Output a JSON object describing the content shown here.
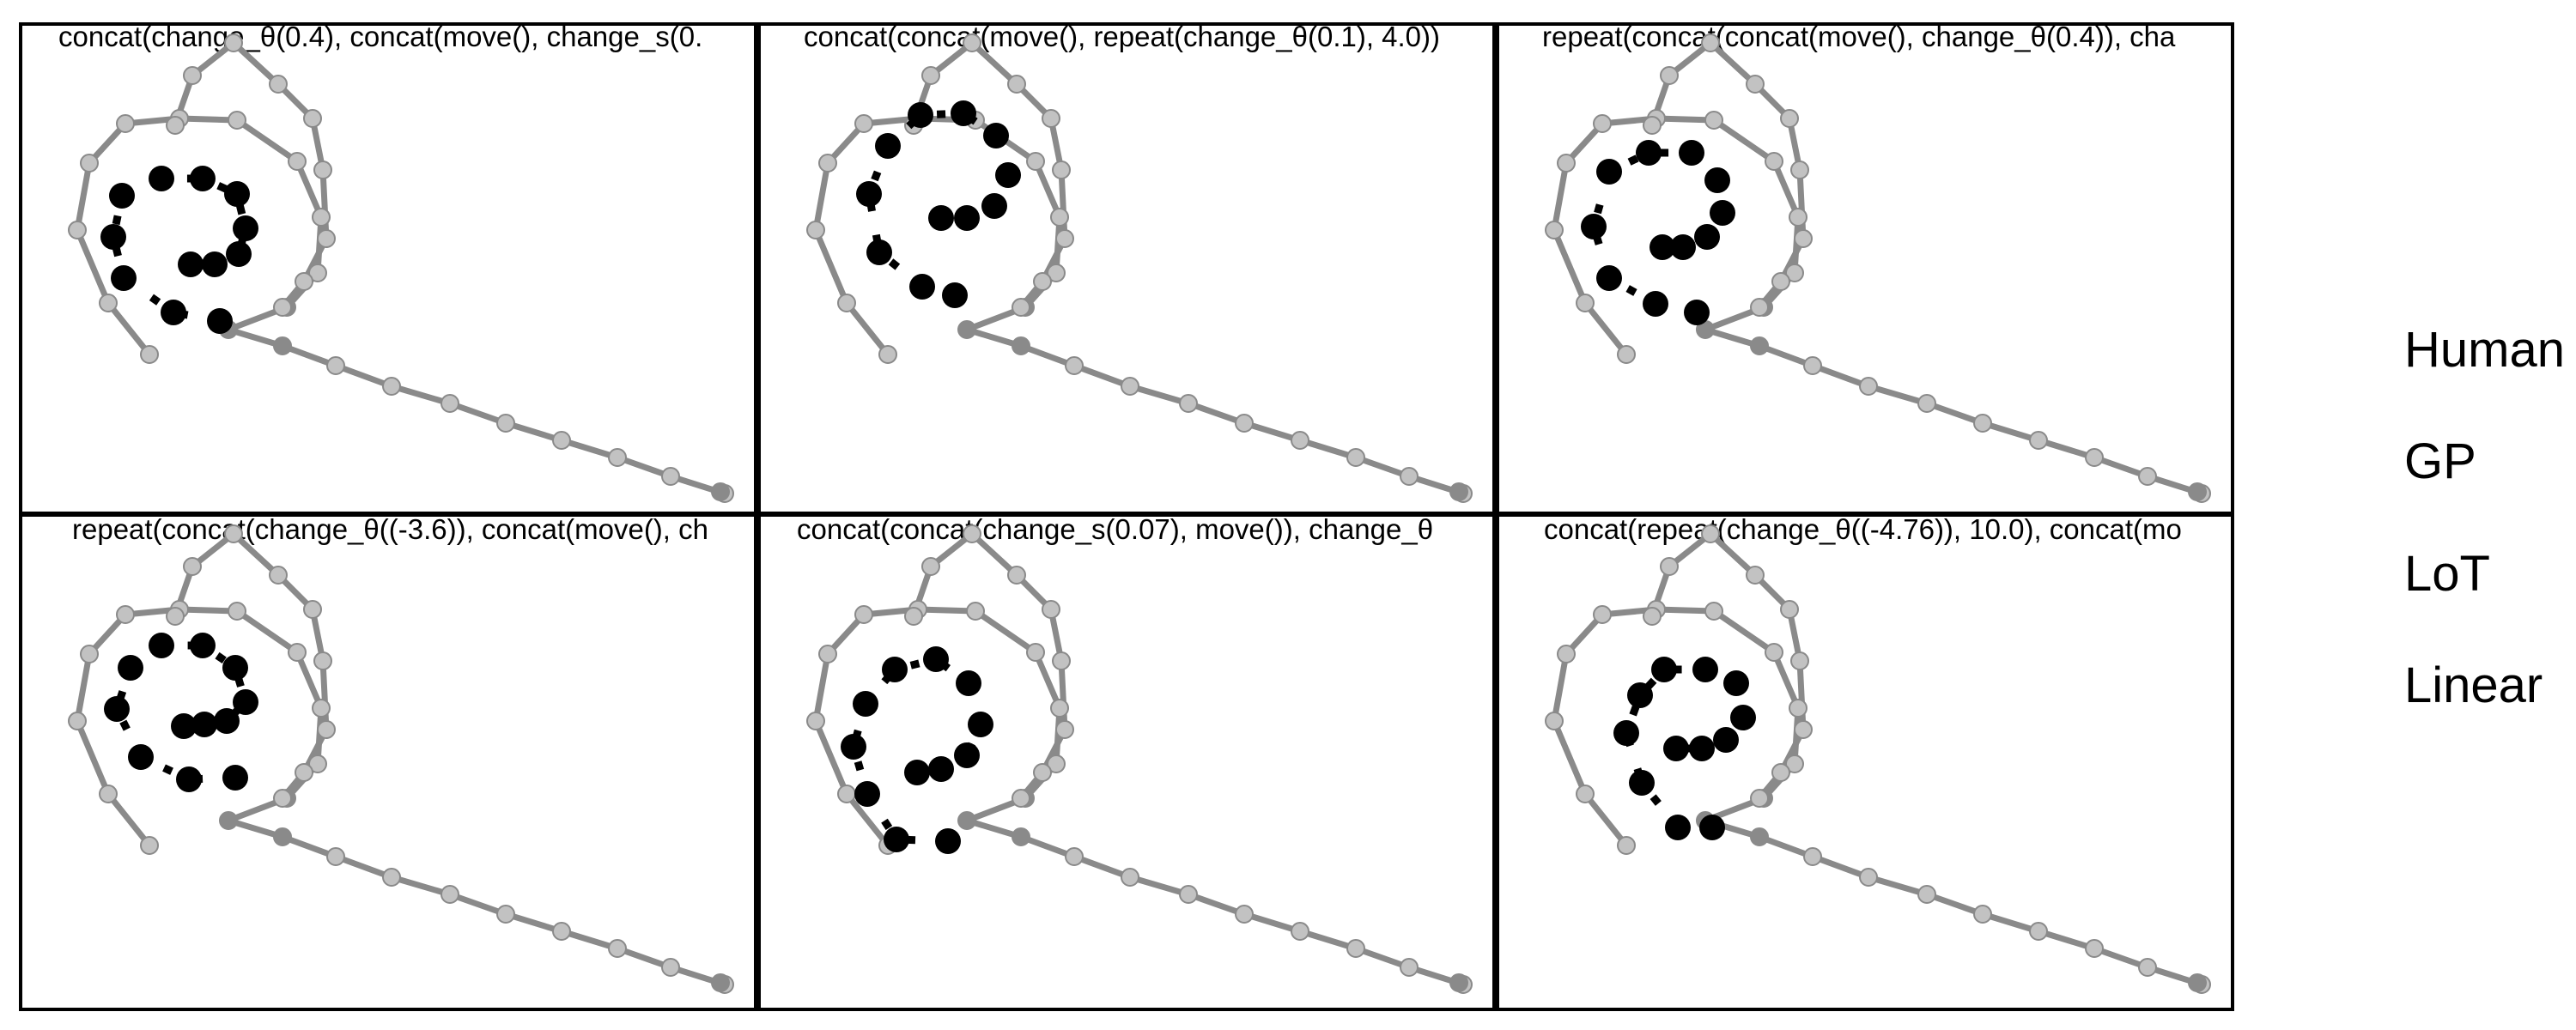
{
  "colors": {
    "gray_line": "#8a8a8a",
    "gray_dot": "#8a8a8a",
    "faint_dot": "#c2c2c2",
    "black": "#000000",
    "frame": "#000000"
  },
  "panels": [
    {
      "title": "concat(change_θ(0.4), concat(move(), change_s(0."
    },
    {
      "title": "concat(concat(move(), repeat(change_θ(0.1), 4.0))"
    },
    {
      "title": "repeat(concat(concat(move(), change_θ(0.4)), cha"
    },
    {
      "title": "repeat(concat(change_θ((-3.6)), concat(move(), ch"
    },
    {
      "title": "concat(concat(change_s(0.07), move()), change_θ"
    },
    {
      "title": "concat(repeat(change_θ((-4.76)), 10.0), concat(mo"
    }
  ],
  "legend": [
    {
      "label": "Human"
    },
    {
      "label": "GP"
    },
    {
      "label": "LoT"
    },
    {
      "label": "Linear"
    }
  ]
}
